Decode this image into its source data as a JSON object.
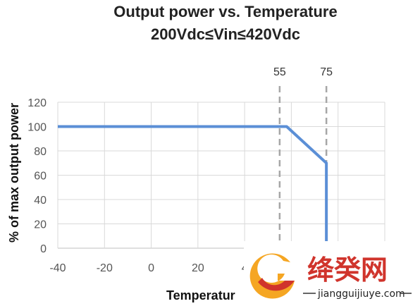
{
  "chart_data": {
    "type": "line",
    "title": "Output power vs. Temperature",
    "subtitle": "200Vdc≤Vin≤420Vdc",
    "xlabel": "Temperatur",
    "ylabel": "% of max output power",
    "xlim": [
      -40,
      100
    ],
    "ylim": [
      0,
      120
    ],
    "xticks": [
      "-40",
      "-20",
      "0",
      "20",
      "4"
    ],
    "yticks": [
      "0",
      "20",
      "40",
      "60",
      "80",
      "100",
      "120"
    ],
    "grid": true,
    "series": [
      {
        "color": "#5B8FD6",
        "x": [
          -40,
          55,
          58,
          75,
          75
        ],
        "y": [
          100,
          100,
          100,
          70,
          0
        ]
      }
    ],
    "annotations": [
      {
        "label": "55",
        "x": 55
      },
      {
        "label": "75",
        "x": 75
      }
    ]
  },
  "watermark": {
    "text": "绛癸网",
    "url": "jiangguijiuye.com",
    "colors": {
      "orange": "#F5A623",
      "red": "#D0342C"
    }
  }
}
